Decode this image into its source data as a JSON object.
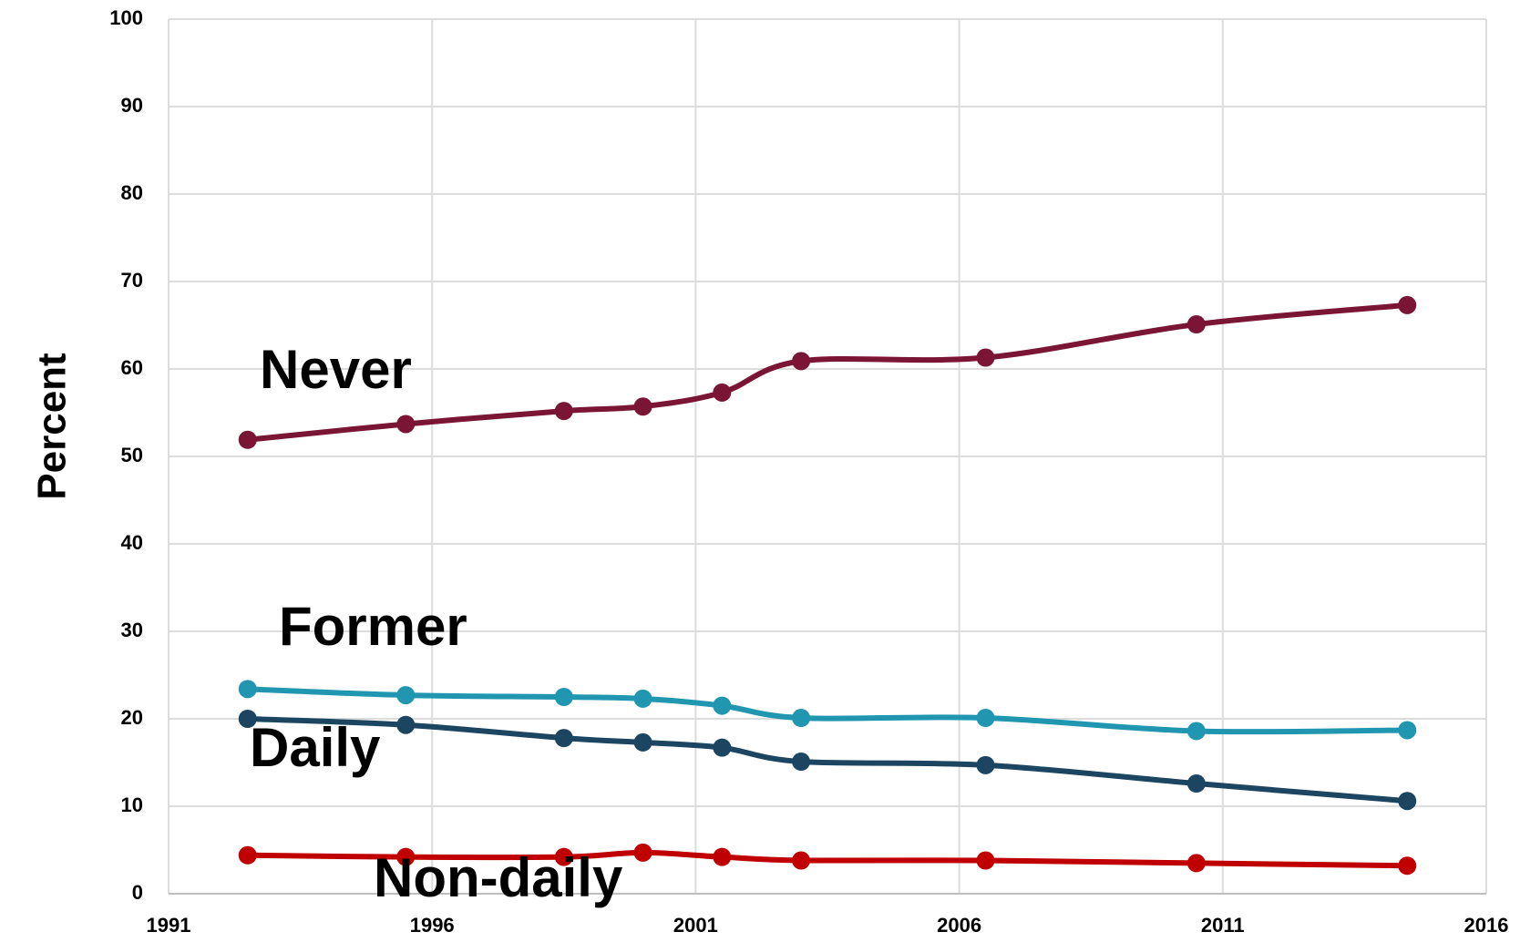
{
  "chart_data": {
    "type": "line",
    "y_label": "Percent",
    "x": [
      1992.5,
      1995.5,
      1998.5,
      2000,
      2001.5,
      2003,
      2006.5,
      2010.5,
      2014.5
    ],
    "series": [
      {
        "name": "Never",
        "color": "#7a1535",
        "values": [
          51.9,
          53.7,
          55.2,
          55.7,
          57.3,
          60.9,
          61.3,
          65.1,
          67.3
        ]
      },
      {
        "name": "Former",
        "color": "#2196b0",
        "values": [
          23.4,
          22.7,
          22.5,
          22.3,
          21.5,
          20.1,
          20.1,
          18.6,
          18.7
        ]
      },
      {
        "name": "Daily",
        "color": "#1b4560",
        "values": [
          20.0,
          19.3,
          17.8,
          17.3,
          16.7,
          15.1,
          14.7,
          12.6,
          10.6
        ]
      },
      {
        "name": "Non-daily",
        "color": "#c00000",
        "values": [
          4.4,
          4.2,
          4.2,
          4.7,
          4.2,
          3.8,
          3.8,
          3.5,
          3.2
        ]
      }
    ],
    "xlim": [
      1991,
      2016
    ],
    "xticks": [
      1991,
      1996,
      2001,
      2006,
      2011,
      2016
    ],
    "ylim": [
      0,
      100
    ],
    "yticks": [
      0,
      10,
      20,
      30,
      40,
      50,
      60,
      70,
      80,
      90,
      100
    ],
    "grid": true
  }
}
